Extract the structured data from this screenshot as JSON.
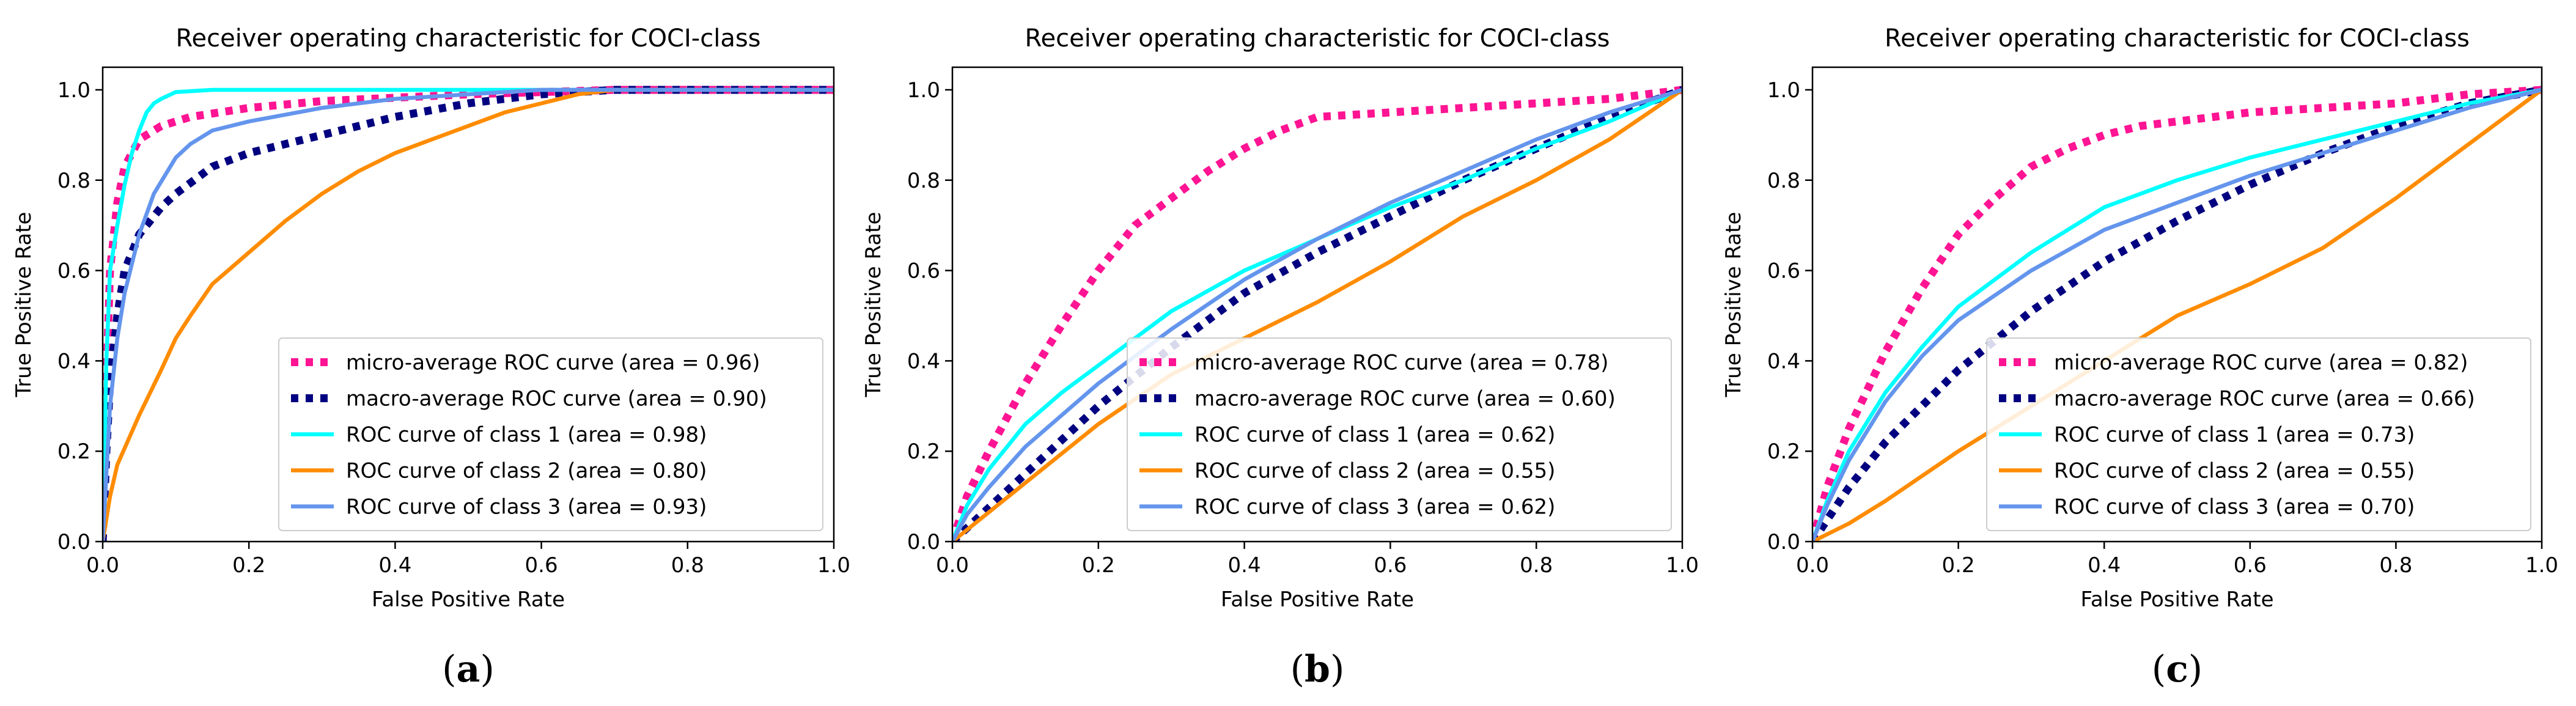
{
  "colors": {
    "micro": "#ff1493",
    "macro": "#000080",
    "class1": "#00ffff",
    "class2": "#ff8c00",
    "class3": "#6495ed",
    "axis": "#000000",
    "legend_border": "#cccccc"
  },
  "panel_labels": [
    "(a)",
    "(b)",
    "(c)"
  ],
  "chart_data": [
    {
      "type": "line",
      "title": "Receiver operating characteristic for COCI-class",
      "xlabel": "False Positive Rate",
      "ylabel": "True Positive Rate",
      "xlim": [
        0,
        1
      ],
      "ylim": [
        0,
        1.05
      ],
      "xticks": [
        "0.0",
        "0.2",
        "0.4",
        "0.6",
        "0.8",
        "1.0"
      ],
      "yticks": [
        "0.0",
        "0.2",
        "0.4",
        "0.6",
        "0.8",
        "1.0"
      ],
      "grid": false,
      "legend_position": "lower-right",
      "series": [
        {
          "name": "micro-average ROC curve (area = 0.96)",
          "style": "dotted",
          "color_key": "micro",
          "x": [
            0,
            0.005,
            0.01,
            0.02,
            0.03,
            0.05,
            0.08,
            0.12,
            0.2,
            0.3,
            0.5,
            0.7,
            1.0
          ],
          "y": [
            0,
            0.35,
            0.6,
            0.75,
            0.83,
            0.89,
            0.92,
            0.94,
            0.96,
            0.975,
            0.99,
            1.0,
            1.0
          ]
        },
        {
          "name": "macro-average ROC curve (area = 0.90)",
          "style": "dotted",
          "color_key": "macro",
          "x": [
            0,
            0.005,
            0.01,
            0.02,
            0.03,
            0.05,
            0.08,
            0.1,
            0.15,
            0.2,
            0.3,
            0.4,
            0.5,
            0.6,
            0.7,
            1.0
          ],
          "y": [
            0,
            0.2,
            0.35,
            0.5,
            0.6,
            0.68,
            0.74,
            0.77,
            0.83,
            0.86,
            0.9,
            0.94,
            0.97,
            0.99,
            1.0,
            1.0
          ]
        },
        {
          "name": "ROC curve of class 1 (area = 0.98)",
          "style": "solid",
          "color_key": "class1",
          "x": [
            0,
            0.005,
            0.01,
            0.02,
            0.03,
            0.04,
            0.05,
            0.06,
            0.07,
            0.08,
            0.1,
            0.15,
            1.0
          ],
          "y": [
            0,
            0.4,
            0.6,
            0.7,
            0.79,
            0.86,
            0.91,
            0.95,
            0.97,
            0.98,
            0.995,
            1.0,
            1.0
          ]
        },
        {
          "name": "ROC curve of class 2 (area = 0.80)",
          "style": "solid",
          "color_key": "class2",
          "x": [
            0,
            0.01,
            0.02,
            0.05,
            0.08,
            0.1,
            0.12,
            0.15,
            0.2,
            0.25,
            0.3,
            0.35,
            0.4,
            0.45,
            0.5,
            0.55,
            0.6,
            0.65,
            0.7,
            0.75,
            1.0
          ],
          "y": [
            0,
            0.1,
            0.17,
            0.28,
            0.38,
            0.45,
            0.5,
            0.57,
            0.64,
            0.71,
            0.77,
            0.82,
            0.86,
            0.89,
            0.92,
            0.95,
            0.97,
            0.99,
            1.0,
            1.0,
            1.0
          ]
        },
        {
          "name": "ROC curve of class 3 (area = 0.93)",
          "style": "solid",
          "color_key": "class3",
          "x": [
            0,
            0.01,
            0.02,
            0.03,
            0.05,
            0.07,
            0.1,
            0.12,
            0.15,
            0.2,
            0.3,
            0.4,
            0.5,
            0.6,
            0.7,
            1.0
          ],
          "y": [
            0,
            0.3,
            0.45,
            0.55,
            0.68,
            0.77,
            0.85,
            0.88,
            0.91,
            0.93,
            0.96,
            0.98,
            0.99,
            1.0,
            1.0,
            1.0
          ]
        }
      ]
    },
    {
      "type": "line",
      "title": "Receiver operating characteristic for COCI-class",
      "xlabel": "False Positive Rate",
      "ylabel": "True Positive Rate",
      "xlim": [
        0,
        1
      ],
      "ylim": [
        0,
        1.05
      ],
      "xticks": [
        "0.0",
        "0.2",
        "0.4",
        "0.6",
        "0.8",
        "1.0"
      ],
      "yticks": [
        "0.0",
        "0.2",
        "0.4",
        "0.6",
        "0.8",
        "1.0"
      ],
      "grid": false,
      "legend_position": "lower-right",
      "series": [
        {
          "name": "micro-average ROC curve (area = 0.78)",
          "style": "dotted",
          "color_key": "micro",
          "x": [
            0,
            0.02,
            0.05,
            0.1,
            0.15,
            0.2,
            0.25,
            0.3,
            0.35,
            0.4,
            0.45,
            0.5,
            0.6,
            0.7,
            0.8,
            0.9,
            1.0
          ],
          "y": [
            0,
            0.1,
            0.2,
            0.35,
            0.48,
            0.6,
            0.7,
            0.76,
            0.82,
            0.87,
            0.91,
            0.94,
            0.95,
            0.96,
            0.97,
            0.98,
            1.0
          ]
        },
        {
          "name": "macro-average ROC curve (area = 0.60)",
          "style": "dotted",
          "color_key": "macro",
          "x": [
            0,
            0.1,
            0.2,
            0.3,
            0.4,
            0.5,
            0.6,
            0.7,
            0.8,
            0.9,
            1.0
          ],
          "y": [
            0,
            0.15,
            0.3,
            0.43,
            0.55,
            0.64,
            0.72,
            0.8,
            0.87,
            0.94,
            1.0
          ]
        },
        {
          "name": "ROC curve of class 1 (area = 0.62)",
          "style": "solid",
          "color_key": "class1",
          "x": [
            0,
            0.02,
            0.05,
            0.1,
            0.15,
            0.2,
            0.3,
            0.4,
            0.5,
            0.6,
            0.7,
            0.8,
            0.9,
            1.0
          ],
          "y": [
            0,
            0.08,
            0.16,
            0.26,
            0.33,
            0.39,
            0.51,
            0.6,
            0.67,
            0.74,
            0.8,
            0.87,
            0.93,
            1.0
          ]
        },
        {
          "name": "ROC curve of class 2 (area = 0.55)",
          "style": "solid",
          "color_key": "class2",
          "x": [
            0,
            0.1,
            0.2,
            0.3,
            0.4,
            0.5,
            0.6,
            0.7,
            0.8,
            0.9,
            1.0
          ],
          "y": [
            0,
            0.13,
            0.26,
            0.37,
            0.45,
            0.53,
            0.62,
            0.72,
            0.8,
            0.89,
            1.0
          ]
        },
        {
          "name": "ROC curve of class 3 (area = 0.62)",
          "style": "solid",
          "color_key": "class3",
          "x": [
            0,
            0.02,
            0.05,
            0.1,
            0.15,
            0.2,
            0.3,
            0.4,
            0.5,
            0.6,
            0.7,
            0.8,
            0.9,
            1.0
          ],
          "y": [
            0,
            0.06,
            0.12,
            0.21,
            0.28,
            0.35,
            0.47,
            0.58,
            0.67,
            0.75,
            0.82,
            0.89,
            0.95,
            1.0
          ]
        }
      ]
    },
    {
      "type": "line",
      "title": "Receiver operating characteristic for COCI-class",
      "xlabel": "False Positive Rate",
      "ylabel": "True Positive Rate",
      "xlim": [
        0,
        1
      ],
      "ylim": [
        0,
        1.05
      ],
      "xticks": [
        "0.0",
        "0.2",
        "0.4",
        "0.6",
        "0.8",
        "1.0"
      ],
      "yticks": [
        "0.0",
        "0.2",
        "0.4",
        "0.6",
        "0.8",
        "1.0"
      ],
      "grid": false,
      "legend_position": "lower-right",
      "series": [
        {
          "name": "micro-average ROC curve (area = 0.82)",
          "style": "dotted",
          "color_key": "micro",
          "x": [
            0,
            0.02,
            0.05,
            0.1,
            0.15,
            0.2,
            0.25,
            0.3,
            0.35,
            0.4,
            0.45,
            0.5,
            0.6,
            0.7,
            0.8,
            0.9,
            1.0
          ],
          "y": [
            0,
            0.12,
            0.25,
            0.42,
            0.56,
            0.68,
            0.76,
            0.83,
            0.87,
            0.9,
            0.92,
            0.93,
            0.95,
            0.96,
            0.97,
            0.99,
            1.0
          ]
        },
        {
          "name": "macro-average ROC curve (area = 0.66)",
          "style": "dotted",
          "color_key": "macro",
          "x": [
            0,
            0.05,
            0.1,
            0.2,
            0.3,
            0.4,
            0.5,
            0.6,
            0.7,
            0.8,
            0.9,
            1.0
          ],
          "y": [
            0,
            0.12,
            0.22,
            0.38,
            0.51,
            0.62,
            0.71,
            0.79,
            0.86,
            0.92,
            0.97,
            1.0
          ]
        },
        {
          "name": "ROC curve of class 1 (area = 0.73)",
          "style": "solid",
          "color_key": "class1",
          "x": [
            0,
            0.02,
            0.05,
            0.1,
            0.15,
            0.2,
            0.3,
            0.4,
            0.5,
            0.6,
            0.7,
            0.8,
            0.9,
            1.0
          ],
          "y": [
            0,
            0.09,
            0.2,
            0.33,
            0.43,
            0.52,
            0.64,
            0.74,
            0.8,
            0.85,
            0.89,
            0.93,
            0.97,
            1.0
          ]
        },
        {
          "name": "ROC curve of class 2 (area = 0.55)",
          "style": "solid",
          "color_key": "class2",
          "x": [
            0,
            0.05,
            0.1,
            0.2,
            0.3,
            0.4,
            0.5,
            0.6,
            0.7,
            0.8,
            0.9,
            1.0
          ],
          "y": [
            0,
            0.04,
            0.09,
            0.2,
            0.3,
            0.4,
            0.5,
            0.57,
            0.65,
            0.76,
            0.88,
            1.0
          ]
        },
        {
          "name": "ROC curve of class 3 (area = 0.70)",
          "style": "solid",
          "color_key": "class3",
          "x": [
            0,
            0.02,
            0.05,
            0.1,
            0.15,
            0.2,
            0.3,
            0.4,
            0.5,
            0.6,
            0.7,
            0.8,
            0.9,
            1.0
          ],
          "y": [
            0,
            0.08,
            0.18,
            0.31,
            0.41,
            0.49,
            0.6,
            0.69,
            0.75,
            0.81,
            0.86,
            0.91,
            0.96,
            1.0
          ]
        }
      ]
    }
  ]
}
